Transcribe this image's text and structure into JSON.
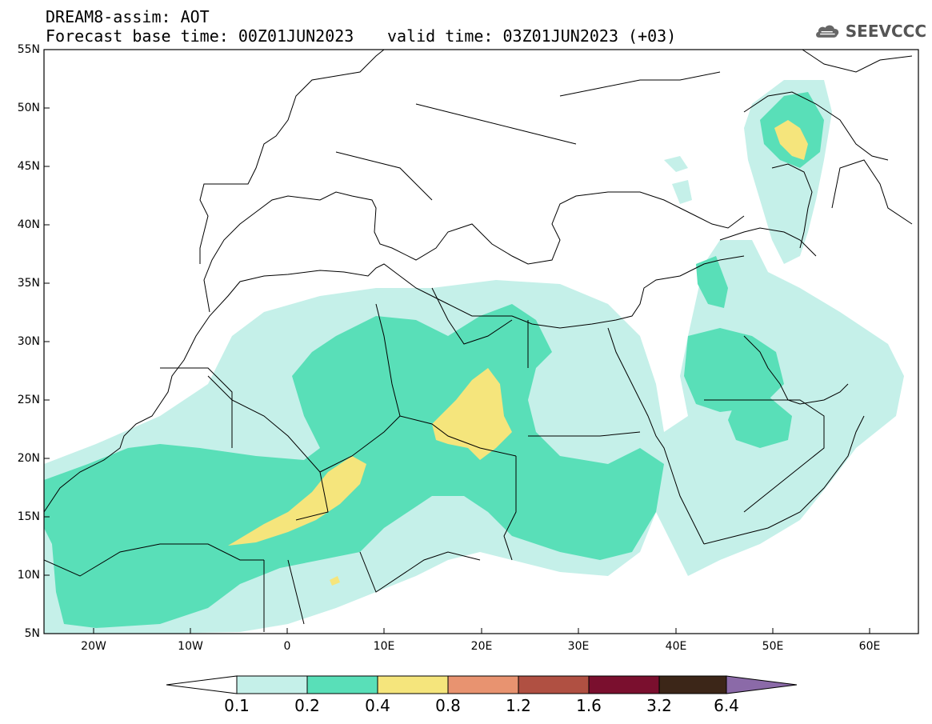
{
  "header": {
    "title_line1": "DREAM8-assim: AOT",
    "title_line2": "Forecast base time: 00Z01JUN2023",
    "valid_time": "valid time: 03Z01JUN2023 (+03)"
  },
  "logo": {
    "text": "SEEVCCC",
    "icon": "cloud-icon"
  },
  "axes": {
    "lat_labels": [
      "55N",
      "50N",
      "45N",
      "40N",
      "35N",
      "30N",
      "25N",
      "20N",
      "15N",
      "10N",
      "5N"
    ],
    "lon_labels": [
      "20W",
      "10W",
      "0",
      "10E",
      "20E",
      "30E",
      "40E",
      "50E",
      "60E"
    ],
    "lat_range": [
      5,
      55
    ],
    "lon_range": [
      -25,
      65
    ]
  },
  "colorbar": {
    "labels": [
      "0.1",
      "0.2",
      "0.4",
      "0.8",
      "1.2",
      "1.6",
      "3.2",
      "6.4"
    ],
    "colors": [
      "#ffffff",
      "#c5f0e9",
      "#59dfb8",
      "#f5e57c",
      "#e89370",
      "#b05042",
      "#7a0f2e",
      "#3c2618",
      "#8b6aa8"
    ]
  },
  "style": {
    "c1": "#c5f0e9",
    "c2": "#59dfb8",
    "c3": "#f5e57c",
    "border": "#000000"
  }
}
